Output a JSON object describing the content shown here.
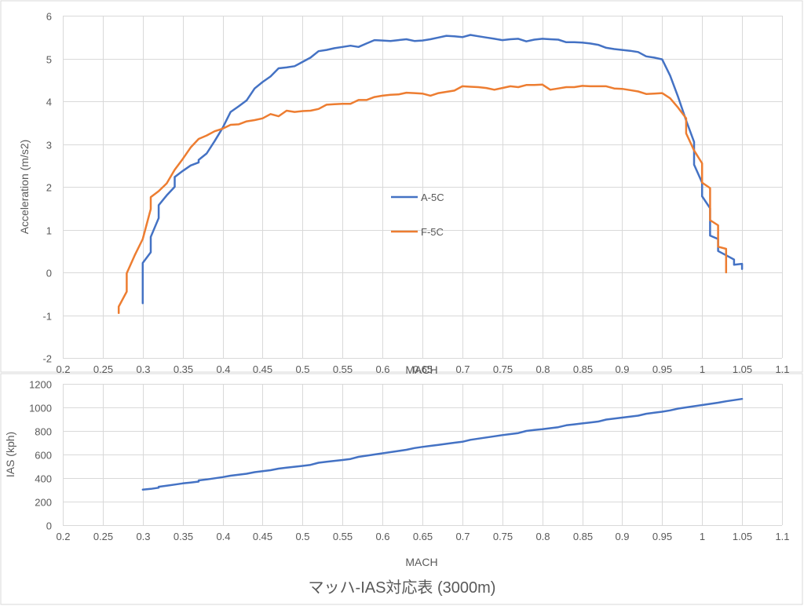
{
  "chart_data": [
    {
      "type": "line",
      "title": "",
      "xlabel": "MACH",
      "ylabel": "Acceleration (m/s2)",
      "xlim": [
        0.2,
        1.1
      ],
      "ylim": [
        -2,
        6
      ],
      "xticks": [
        "0.2",
        "0.25",
        "0.3",
        "0.35",
        "0.4",
        "0.45",
        "0.5",
        "0.55",
        "0.6",
        "0.65",
        "0.7",
        "0.75",
        "0.8",
        "0.85",
        "0.9",
        "0.95",
        "1",
        "1.05",
        "1.1"
      ],
      "yticks": [
        "-2",
        "-1",
        "0",
        "1",
        "2",
        "3",
        "4",
        "5",
        "6"
      ],
      "grid": "vertical and horizontal",
      "legend_position": "inside center",
      "series": [
        {
          "name": "A-5C",
          "color": "#4472c4",
          "points": [
            [
              0.3,
              -0.72
            ],
            [
              0.3,
              0.22
            ],
            [
              0.31,
              0.47
            ],
            [
              0.31,
              0.83
            ],
            [
              0.32,
              1.27
            ],
            [
              0.32,
              1.57
            ],
            [
              0.33,
              1.8
            ],
            [
              0.34,
              2.0
            ],
            [
              0.34,
              2.23
            ],
            [
              0.35,
              2.37
            ],
            [
              0.36,
              2.5
            ],
            [
              0.37,
              2.57
            ],
            [
              0.37,
              2.63
            ],
            [
              0.38,
              2.78
            ],
            [
              0.39,
              3.07
            ],
            [
              0.4,
              3.38
            ],
            [
              0.41,
              3.75
            ],
            [
              0.42,
              3.88
            ],
            [
              0.43,
              4.02
            ],
            [
              0.44,
              4.3
            ],
            [
              0.45,
              4.45
            ],
            [
              0.46,
              4.58
            ],
            [
              0.47,
              4.77
            ],
            [
              0.48,
              4.79
            ],
            [
              0.49,
              4.82
            ],
            [
              0.5,
              4.92
            ],
            [
              0.51,
              5.02
            ],
            [
              0.52,
              5.17
            ],
            [
              0.53,
              5.2
            ],
            [
              0.54,
              5.24
            ],
            [
              0.55,
              5.27
            ],
            [
              0.56,
              5.3
            ],
            [
              0.57,
              5.27
            ],
            [
              0.58,
              5.35
            ],
            [
              0.59,
              5.43
            ],
            [
              0.6,
              5.42
            ],
            [
              0.61,
              5.41
            ],
            [
              0.62,
              5.43
            ],
            [
              0.63,
              5.45
            ],
            [
              0.64,
              5.41
            ],
            [
              0.65,
              5.42
            ],
            [
              0.66,
              5.45
            ],
            [
              0.67,
              5.49
            ],
            [
              0.68,
              5.53
            ],
            [
              0.69,
              5.52
            ],
            [
              0.7,
              5.5
            ],
            [
              0.71,
              5.55
            ],
            [
              0.72,
              5.52
            ],
            [
              0.73,
              5.49
            ],
            [
              0.74,
              5.46
            ],
            [
              0.75,
              5.43
            ],
            [
              0.76,
              5.45
            ],
            [
              0.77,
              5.46
            ],
            [
              0.78,
              5.4
            ],
            [
              0.79,
              5.44
            ],
            [
              0.8,
              5.46
            ],
            [
              0.81,
              5.45
            ],
            [
              0.82,
              5.44
            ],
            [
              0.83,
              5.38
            ],
            [
              0.84,
              5.38
            ],
            [
              0.85,
              5.37
            ],
            [
              0.86,
              5.35
            ],
            [
              0.87,
              5.32
            ],
            [
              0.88,
              5.25
            ],
            [
              0.89,
              5.22
            ],
            [
              0.9,
              5.2
            ],
            [
              0.91,
              5.18
            ],
            [
              0.92,
              5.15
            ],
            [
              0.93,
              5.05
            ],
            [
              0.94,
              5.02
            ],
            [
              0.95,
              4.98
            ],
            [
              0.96,
              4.6
            ],
            [
              0.97,
              4.1
            ],
            [
              0.98,
              3.55
            ],
            [
              0.99,
              3.05
            ],
            [
              0.99,
              2.52
            ],
            [
              1.0,
              2.1
            ],
            [
              1.0,
              1.78
            ],
            [
              1.01,
              1.5
            ],
            [
              1.01,
              0.86
            ],
            [
              1.02,
              0.78
            ],
            [
              1.02,
              0.5
            ],
            [
              1.03,
              0.4
            ],
            [
              1.04,
              0.3
            ],
            [
              1.04,
              0.18
            ],
            [
              1.05,
              0.2
            ],
            [
              1.05,
              0.08
            ]
          ]
        },
        {
          "name": "F-5C",
          "color": "#ed7d31",
          "points": [
            [
              0.27,
              -0.95
            ],
            [
              0.27,
              -0.8
            ],
            [
              0.28,
              -0.45
            ],
            [
              0.28,
              -0.02
            ],
            [
              0.29,
              0.4
            ],
            [
              0.3,
              0.78
            ],
            [
              0.31,
              1.48
            ],
            [
              0.31,
              1.76
            ],
            [
              0.32,
              1.9
            ],
            [
              0.33,
              2.08
            ],
            [
              0.34,
              2.4
            ],
            [
              0.35,
              2.65
            ],
            [
              0.36,
              2.92
            ],
            [
              0.37,
              3.12
            ],
            [
              0.38,
              3.2
            ],
            [
              0.39,
              3.3
            ],
            [
              0.4,
              3.36
            ],
            [
              0.41,
              3.45
            ],
            [
              0.42,
              3.46
            ],
            [
              0.43,
              3.53
            ],
            [
              0.44,
              3.56
            ],
            [
              0.45,
              3.6
            ],
            [
              0.46,
              3.7
            ],
            [
              0.47,
              3.65
            ],
            [
              0.48,
              3.78
            ],
            [
              0.49,
              3.75
            ],
            [
              0.5,
              3.77
            ],
            [
              0.51,
              3.78
            ],
            [
              0.52,
              3.82
            ],
            [
              0.53,
              3.92
            ],
            [
              0.54,
              3.93
            ],
            [
              0.55,
              3.94
            ],
            [
              0.56,
              3.94
            ],
            [
              0.57,
              4.03
            ],
            [
              0.58,
              4.03
            ],
            [
              0.59,
              4.1
            ],
            [
              0.6,
              4.13
            ],
            [
              0.61,
              4.15
            ],
            [
              0.62,
              4.16
            ],
            [
              0.63,
              4.2
            ],
            [
              0.64,
              4.19
            ],
            [
              0.65,
              4.18
            ],
            [
              0.66,
              4.13
            ],
            [
              0.67,
              4.19
            ],
            [
              0.68,
              4.22
            ],
            [
              0.69,
              4.25
            ],
            [
              0.7,
              4.35
            ],
            [
              0.71,
              4.34
            ],
            [
              0.72,
              4.33
            ],
            [
              0.73,
              4.31
            ],
            [
              0.74,
              4.27
            ],
            [
              0.75,
              4.31
            ],
            [
              0.76,
              4.35
            ],
            [
              0.77,
              4.33
            ],
            [
              0.78,
              4.38
            ],
            [
              0.79,
              4.38
            ],
            [
              0.8,
              4.39
            ],
            [
              0.81,
              4.27
            ],
            [
              0.82,
              4.3
            ],
            [
              0.83,
              4.33
            ],
            [
              0.84,
              4.33
            ],
            [
              0.85,
              4.36
            ],
            [
              0.86,
              4.35
            ],
            [
              0.87,
              4.35
            ],
            [
              0.88,
              4.35
            ],
            [
              0.89,
              4.3
            ],
            [
              0.9,
              4.29
            ],
            [
              0.91,
              4.26
            ],
            [
              0.92,
              4.23
            ],
            [
              0.93,
              4.17
            ],
            [
              0.94,
              4.18
            ],
            [
              0.95,
              4.19
            ],
            [
              0.96,
              4.07
            ],
            [
              0.97,
              3.85
            ],
            [
              0.98,
              3.6
            ],
            [
              0.98,
              3.25
            ],
            [
              0.99,
              2.85
            ],
            [
              1.0,
              2.55
            ],
            [
              1.0,
              2.1
            ],
            [
              1.01,
              1.97
            ],
            [
              1.01,
              1.22
            ],
            [
              1.02,
              1.1
            ],
            [
              1.02,
              0.6
            ],
            [
              1.03,
              0.55
            ],
            [
              1.03,
              0.0
            ]
          ]
        }
      ]
    },
    {
      "type": "line",
      "title": "マッハ-IAS対応表 (3000m)",
      "xlabel": "MACH",
      "ylabel": "IAS (kph)",
      "xlim": [
        0.2,
        1.1
      ],
      "ylim": [
        0,
        1200
      ],
      "xticks": [
        "0.2",
        "0.25",
        "0.3",
        "0.35",
        "0.4",
        "0.45",
        "0.5",
        "0.55",
        "0.6",
        "0.65",
        "0.7",
        "0.75",
        "0.8",
        "0.85",
        "0.9",
        "0.95",
        "1",
        "1.05",
        "1.1"
      ],
      "yticks": [
        "0",
        "200",
        "400",
        "600",
        "800",
        "1000",
        "1200"
      ],
      "grid": "vertical and horizontal",
      "series": [
        {
          "name": "",
          "color": "#4472c4",
          "points": [
            [
              0.3,
              302
            ],
            [
              0.31,
              308
            ],
            [
              0.32,
              318
            ],
            [
              0.32,
              326
            ],
            [
              0.33,
              335
            ],
            [
              0.34,
              345
            ],
            [
              0.35,
              355
            ],
            [
              0.36,
              362
            ],
            [
              0.37,
              370
            ],
            [
              0.37,
              380
            ],
            [
              0.38,
              388
            ],
            [
              0.39,
              398
            ],
            [
              0.4,
              408
            ],
            [
              0.41,
              420
            ],
            [
              0.42,
              428
            ],
            [
              0.43,
              437
            ],
            [
              0.44,
              450
            ],
            [
              0.45,
              458
            ],
            [
              0.46,
              467
            ],
            [
              0.47,
              480
            ],
            [
              0.48,
              488
            ],
            [
              0.49,
              496
            ],
            [
              0.5,
              503
            ],
            [
              0.51,
              512
            ],
            [
              0.52,
              530
            ],
            [
              0.53,
              538
            ],
            [
              0.54,
              546
            ],
            [
              0.55,
              553
            ],
            [
              0.56,
              562
            ],
            [
              0.57,
              580
            ],
            [
              0.58,
              590
            ],
            [
              0.59,
              600
            ],
            [
              0.6,
              610
            ],
            [
              0.61,
              620
            ],
            [
              0.62,
              630
            ],
            [
              0.63,
              640
            ],
            [
              0.64,
              655
            ],
            [
              0.65,
              665
            ],
            [
              0.66,
              673
            ],
            [
              0.67,
              682
            ],
            [
              0.68,
              691
            ],
            [
              0.69,
              700
            ],
            [
              0.7,
              708
            ],
            [
              0.71,
              725
            ],
            [
              0.72,
              735
            ],
            [
              0.73,
              745
            ],
            [
              0.74,
              755
            ],
            [
              0.75,
              765
            ],
            [
              0.76,
              773
            ],
            [
              0.77,
              782
            ],
            [
              0.78,
              800
            ],
            [
              0.79,
              808
            ],
            [
              0.8,
              815
            ],
            [
              0.81,
              823
            ],
            [
              0.82,
              832
            ],
            [
              0.83,
              848
            ],
            [
              0.84,
              856
            ],
            [
              0.85,
              864
            ],
            [
              0.86,
              872
            ],
            [
              0.87,
              880
            ],
            [
              0.88,
              897
            ],
            [
              0.89,
              905
            ],
            [
              0.9,
              913
            ],
            [
              0.91,
              922
            ],
            [
              0.92,
              930
            ],
            [
              0.93,
              946
            ],
            [
              0.94,
              955
            ],
            [
              0.95,
              963
            ],
            [
              0.96,
              975
            ],
            [
              0.97,
              990
            ],
            [
              0.98,
              1000
            ],
            [
              0.99,
              1010
            ],
            [
              1.0,
              1020
            ],
            [
              1.01,
              1030
            ],
            [
              1.02,
              1040
            ],
            [
              1.03,
              1052
            ],
            [
              1.04,
              1062
            ],
            [
              1.05,
              1072
            ]
          ]
        }
      ]
    }
  ]
}
